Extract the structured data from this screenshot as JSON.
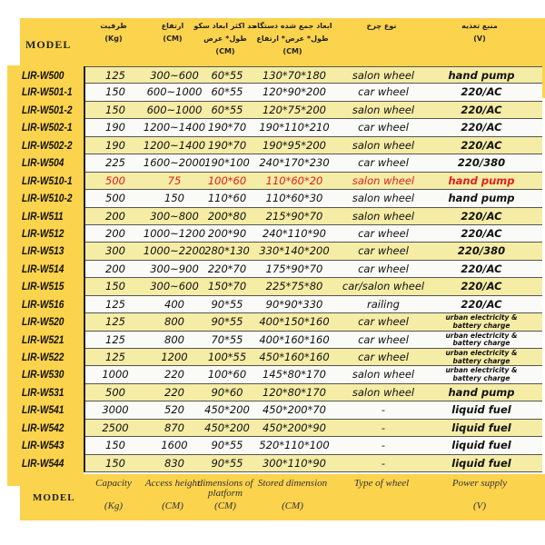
{
  "header": {
    "model": "MODEL",
    "cols": [
      {
        "fa": "ظرفیت",
        "unit": "(Kg)"
      },
      {
        "fa": "ارتفاع",
        "unit": "(CM)"
      },
      {
        "fa": "حد اکثر ابعاد سکو",
        "fa2": "طول* عرض",
        "unit": "(CM)"
      },
      {
        "fa": "ابعاد جمع شده دستگاه",
        "fa2": "طول* عرض* ارتفاع",
        "unit": "(CM)"
      },
      {
        "fa": "نوع چرخ"
      },
      {
        "fa": "منبع تغذیه",
        "unit": "(V)"
      }
    ]
  },
  "footer": {
    "model": "MODEL",
    "cols": [
      {
        "l1": "Capacity",
        "l2": "(Kg)"
      },
      {
        "l1": "Access height",
        "l2": "(CM)"
      },
      {
        "l1": "dimensions of platform",
        "l2": "(CM)"
      },
      {
        "l1": "Stored dimension",
        "l2": "(CM)"
      },
      {
        "l1": "Type of wheel",
        "l2": ""
      },
      {
        "l1": "Power supply",
        "l2": "(V)"
      }
    ]
  },
  "highlight_color": "#e02020",
  "rows": [
    [
      "LIR-W500",
      "125",
      "300~600",
      "60*55",
      "130*70*180",
      "salon wheel",
      "hand pump"
    ],
    [
      "LIR-W501-1",
      "150",
      "600~1000",
      "60*55",
      "120*90*200",
      "car wheel",
      "220/AC"
    ],
    [
      "LIR-W501-2",
      "150",
      "600~1000",
      "60*55",
      "120*75*200",
      "salon wheel",
      "220/AC"
    ],
    [
      "LIR-W502-1",
      "190",
      "1200~1400",
      "190*70",
      "190*110*210",
      "car wheel",
      "220/AC"
    ],
    [
      "LIR-W502-2",
      "190",
      "1200~1400",
      "190*70",
      "190*95*200",
      "salon wheel",
      "220/AC"
    ],
    [
      "LIR-W504",
      "225",
      "1600~2000",
      "190*100",
      "240*170*230",
      "car wheel",
      "220/380"
    ],
    [
      "LIR-W510-1",
      "500",
      "75",
      "100*60",
      "110*60*20",
      "salon wheel",
      "hand pump"
    ],
    [
      "LIR-W510-2",
      "500",
      "150",
      "110*60",
      "110*60*30",
      "salon wheel",
      "hand pump"
    ],
    [
      "LIR-W511",
      "200",
      "300~800",
      "200*80",
      "215*90*70",
      "salon wheel",
      "220/AC"
    ],
    [
      "LIR-W512",
      "200",
      "1000~1200",
      "200*90",
      "240*110*90",
      "car wheel",
      "220/AC"
    ],
    [
      "LIR-W513",
      "300",
      "1000~2200",
      "280*130",
      "330*140*200",
      "car wheel",
      "220/380"
    ],
    [
      "LIR-W514",
      "200",
      "300~900",
      "220*70",
      "175*90*70",
      "car wheel",
      "220/AC"
    ],
    [
      "LIR-W515",
      "150",
      "300~600",
      "150*70",
      "225*75*80",
      "car/salon wheel",
      "220/AC"
    ],
    [
      "LIR-W516",
      "125",
      "400",
      "90*55",
      "90*90*330",
      "railing",
      "220/AC"
    ],
    [
      "LIR-W520",
      "125",
      "800",
      "90*55",
      "400*150*160",
      "car wheel",
      "urban electricity & battery charge"
    ],
    [
      "LIR-W521",
      "125",
      "800",
      "70*55",
      "400*160*160",
      "car wheel",
      "urban electricity & battery charge"
    ],
    [
      "LIR-W522",
      "125",
      "1200",
      "100*55",
      "450*160*160",
      "car wheel",
      "urban electricity & battery charge"
    ],
    [
      "LIR-W530",
      "1000",
      "220",
      "100*60",
      "145*80*170",
      "salon wheel",
      "urban electricity & battery charge"
    ],
    [
      "LIR-W531",
      "500",
      "220",
      "90*60",
      "120*80*170",
      "salon wheel",
      "hand pump"
    ],
    [
      "LIR-W541",
      "3000",
      "520",
      "450*200",
      "450*200*70",
      "-",
      "liquid fuel"
    ],
    [
      "LIR-W542",
      "2500",
      "870",
      "450*200",
      "450*200*90",
      "-",
      "liquid fuel"
    ],
    [
      "LIR-W543",
      "150",
      "1600",
      "90*55",
      "520*110*100",
      "-",
      "liquid fuel"
    ],
    [
      "LIR-W544",
      "150",
      "830",
      "90*55",
      "300*110*90",
      "-",
      "liquid fuel"
    ]
  ]
}
